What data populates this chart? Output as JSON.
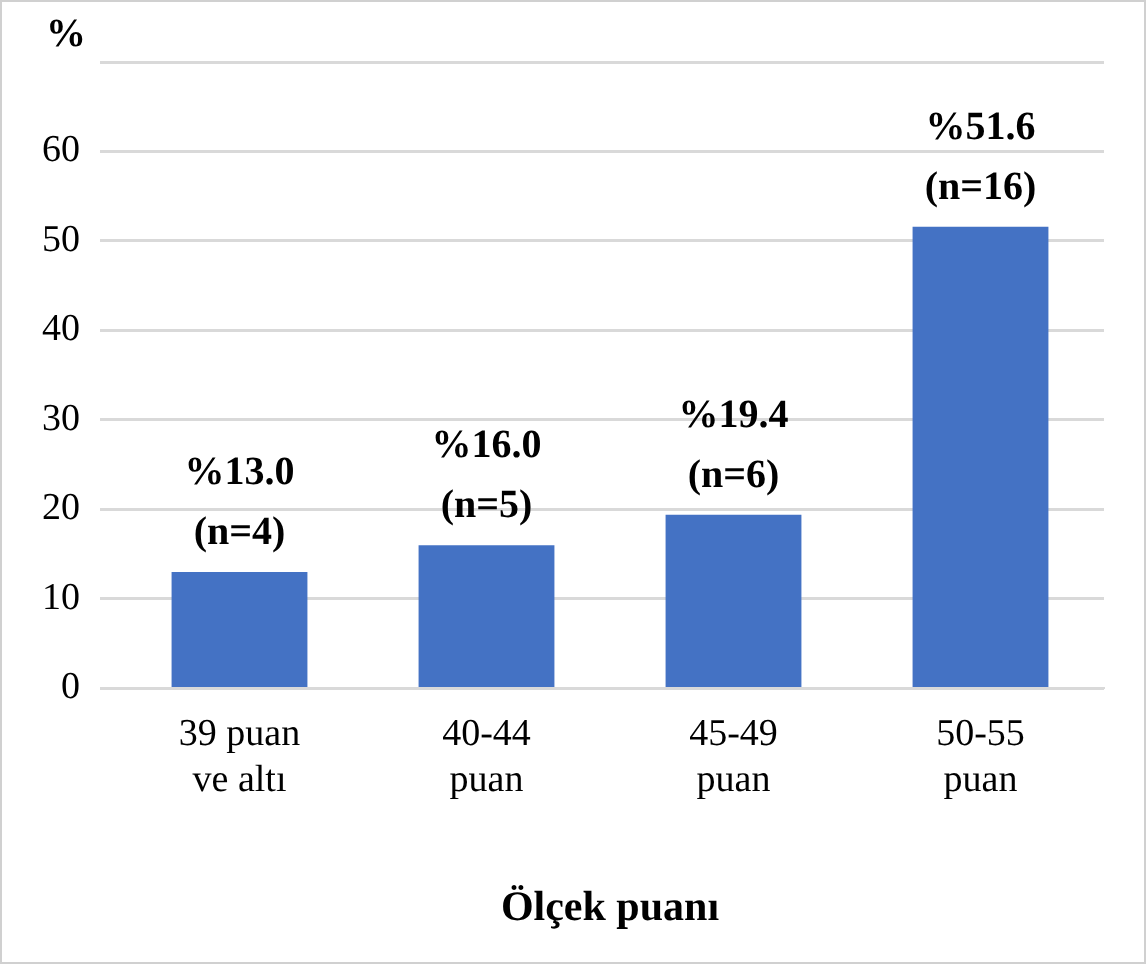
{
  "chart_data": {
    "type": "bar",
    "ylabel": "%",
    "xlabel": "Ölçek puanı",
    "categories": [
      "39 puan\nve altı",
      "40-44\npuan",
      "45-49\npuan",
      "50-55\npuan"
    ],
    "values": [
      13.0,
      16.0,
      19.4,
      51.6
    ],
    "value_labels": [
      "%13.0\n(n=4)",
      "%16.0\n(n=5)",
      "%19.4\n(n=6)",
      "%51.6\n(n=16)"
    ],
    "color": "#4472c4",
    "ylim": [
      0,
      70
    ],
    "yticks": [
      0,
      10,
      20,
      30,
      40,
      50,
      60,
      {
        "value": 70,
        "label": null
      }
    ],
    "grid": "y",
    "legend": false
  }
}
